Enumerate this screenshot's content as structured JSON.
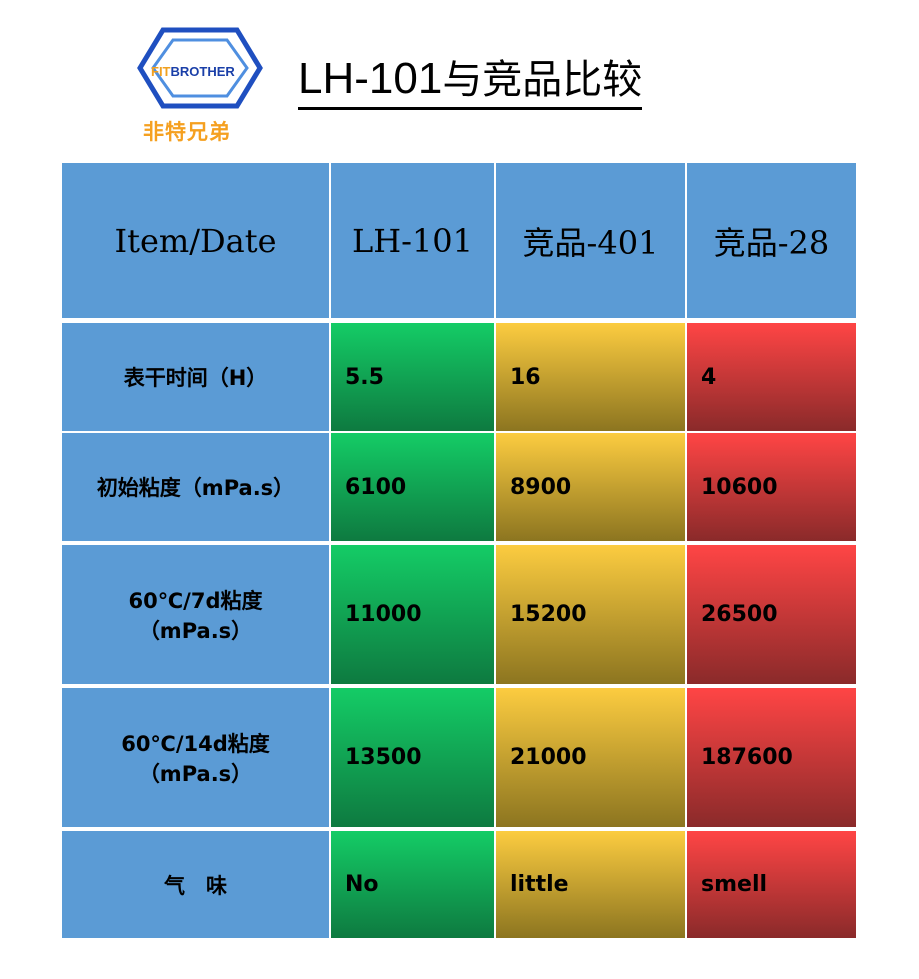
{
  "logo": {
    "brand_prefix": "FIT",
    "brand_suffix": "BROTHER",
    "chinese": "非特兄弟"
  },
  "title": {
    "model": "LH-101",
    "rest": "与竞品比较"
  },
  "table": {
    "headers": [
      "Item/Date",
      "LH-101",
      "竞品-401",
      "竞品-28"
    ],
    "rows": [
      {
        "label": "表干时间（H）",
        "values": [
          "5.5",
          "16",
          "4"
        ]
      },
      {
        "label": "初始粘度（mPa.s）",
        "values": [
          "6100",
          "8900",
          "10600"
        ]
      },
      {
        "label": "60℃/7d粘度\n（mPa.s）",
        "values": [
          "11000",
          "15200",
          "26500"
        ]
      },
      {
        "label": "60℃/14d粘度\n（mPa.s）",
        "values": [
          "13500",
          "21000",
          "187600"
        ]
      },
      {
        "label": "气　味",
        "values": [
          "No",
          "little",
          "smell"
        ]
      }
    ],
    "column_colors": [
      "#14cc66",
      "#fccc40",
      "#ff4545"
    ],
    "header_color": "#5b9bd5"
  }
}
